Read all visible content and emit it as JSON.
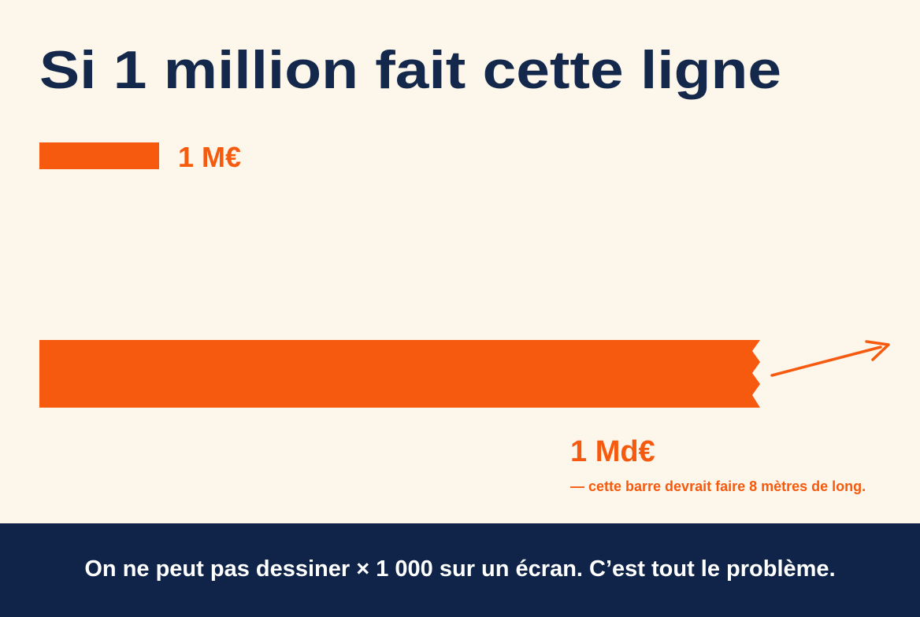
{
  "title": "Si 1 million fait cette ligne",
  "bars": [
    {
      "label": "1 M€"
    },
    {
      "label": "1 Md€",
      "note": "— cette barre devrait faire 8 mètres de long."
    }
  ],
  "footer": "On ne peut pas dessiner × 1 000 sur un écran. C’est tout le problème."
}
